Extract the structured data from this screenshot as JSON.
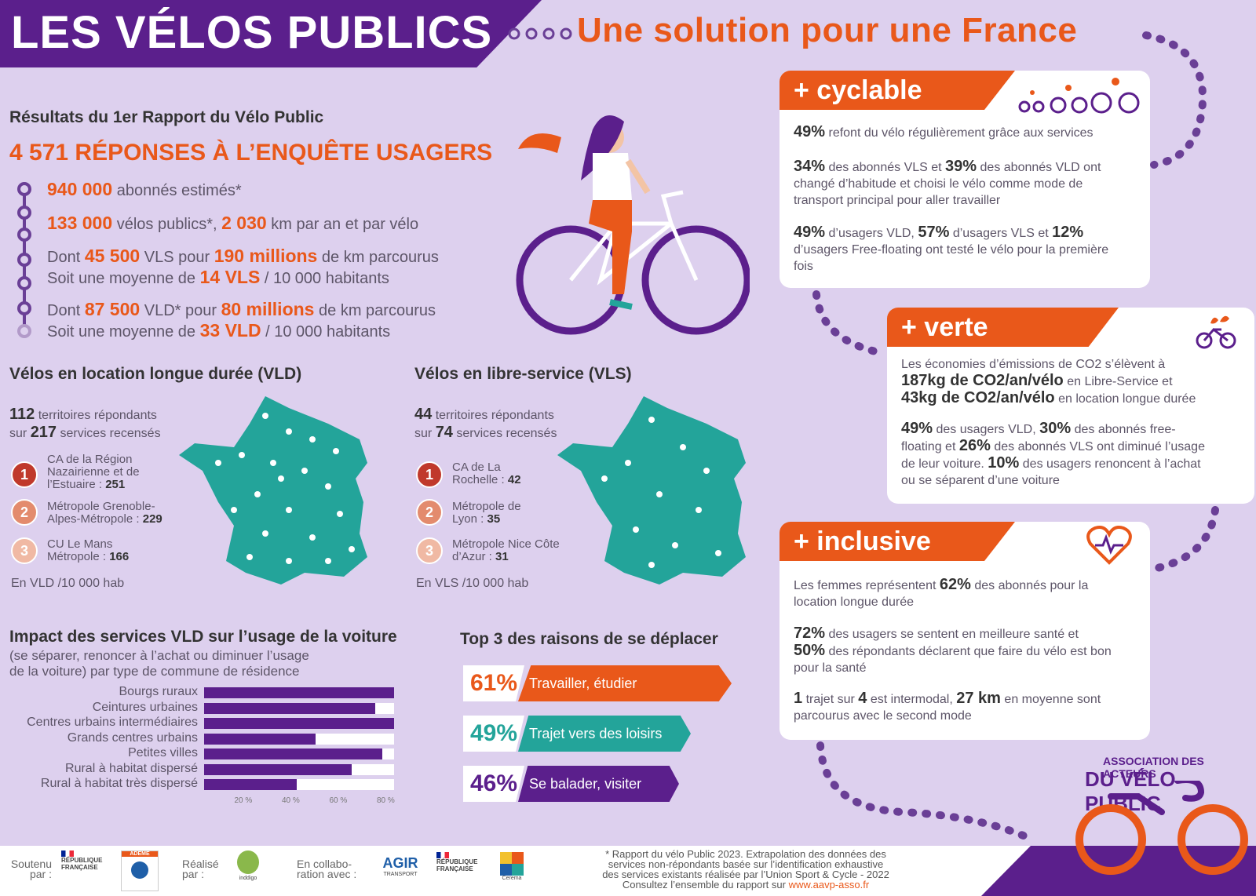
{
  "header": {
    "title": "LES VÉLOS PUBLICS",
    "subtitle": "Une solution pour une France"
  },
  "survey": {
    "report_title": "Résultats du 1er Rapport du Vélo Public",
    "heading": "4 571 RÉPONSES À L’ENQUÊTE USAGERS",
    "subscribers_num": "940 000",
    "subscribers_text": "abonnés estimés*",
    "bikes_num": "133 000",
    "bikes_text": "vélos publics*,",
    "km_num": "2 030",
    "km_text": "km par an et par vélo",
    "vls_pre": "Dont",
    "vls_num": "45 500",
    "vls_mid": "VLS pour",
    "vls_km": "190 millions",
    "vls_post": "de km parcourus",
    "vls_avg_pre": "Soit une moyenne de",
    "vls_avg": "14 VLS",
    "vls_avg_post": "/ 10 000 habitants",
    "vld_pre": "Dont",
    "vld_num": "87 500",
    "vld_mid": "VLD* pour",
    "vld_km": "80 millions",
    "vld_post": "de km parcourus",
    "vld_avg_pre": "Soit une moyenne de",
    "vld_avg": "33 VLD",
    "vld_avg_post": "/ 10 000 habitants"
  },
  "vld_section": {
    "heading": "Vélos en location longue durée (VLD)",
    "territories_num": "112",
    "territories_text": "territoires répondants",
    "services_pre": "sur",
    "services_num": "217",
    "services_text": "services recensés",
    "ranks": [
      {
        "rank": "1",
        "name": "CA de la Région Nazairienne et de l’Estuaire :",
        "value": "251"
      },
      {
        "rank": "2",
        "name": "Métropole Grenoble-Alpes-Métropole :",
        "value": "229"
      },
      {
        "rank": "3",
        "name": "CU Le Mans Métropole :",
        "value": "166"
      }
    ],
    "per_hab": "En VLD /10 000 hab"
  },
  "vls_section": {
    "heading": "Vélos en libre-service (VLS)",
    "territories_num": "44",
    "territories_text": "territoires répondants",
    "services_pre": "sur",
    "services_num": "74",
    "services_text": "services recensés",
    "ranks": [
      {
        "rank": "1",
        "name": "CA de La Rochelle :",
        "value": "42"
      },
      {
        "rank": "2",
        "name": "Métropole de Lyon :",
        "value": "35"
      },
      {
        "rank": "3",
        "name": "Métropole Nice Côte d’Azur :",
        "value": "31"
      }
    ],
    "per_hab": "En VLS /10 000 hab"
  },
  "chart_data": {
    "type": "bar",
    "title": "Impact des services VLD sur l’usage de la voiture",
    "subtitle_lines": [
      "(se séparer, renoncer à l’achat ou diminuer l’usage",
      "de la voiture) par type de commune de résidence"
    ],
    "categories": [
      "Bourgs ruraux",
      "Ceintures urbaines",
      "Centres urbains intermédiaires",
      "Grands centres urbains",
      "Petites villes",
      "Rural à habitat dispersé",
      "Rural à habitat très dispersé"
    ],
    "values": [
      80,
      72,
      80,
      47,
      75,
      62,
      39
    ],
    "xlim": [
      0,
      80
    ],
    "tick_labels": [
      "20 %",
      "40 %",
      "60 %",
      "80 %"
    ],
    "bar_color": "#5b1f8c"
  },
  "reasons": {
    "title": "Top 3 des raisons de se déplacer",
    "items": [
      {
        "pct": "61%",
        "label": "Travailler, étudier",
        "color": "#e9581a"
      },
      {
        "pct": "49%",
        "label": "Trajet vers des loisirs",
        "color": "#23a49a"
      },
      {
        "pct": "46%",
        "label": "Se balader, visiter",
        "color": "#5b1f8c"
      }
    ]
  },
  "cyclable": {
    "tab": "+ cyclable",
    "p1_num": "49%",
    "p1_text": "refont du vélo régulièrement grâce aux services",
    "p2_num_a": "34%",
    "p2_text_a": "des abonnés VLS et",
    "p2_num_b": "39%",
    "p2_text_b": "des abonnés VLD ont",
    "p2_line2": "changé d’habitude et choisi le vélo comme mode de",
    "p2_line3": "transport principal pour aller travailler",
    "p3_num_a": "49%",
    "p3_text_a": "d’usagers VLD,",
    "p3_num_b": "57%",
    "p3_text_b": "d’usagers VLS et",
    "p3_num_c": "12%",
    "p3_line2": "d’usagers Free-floating ont testé le vélo pour la première",
    "p3_line3": "fois"
  },
  "verte": {
    "tab": "+ verte",
    "p1_line1": "Les économies d’émissions de CO2 s’élèvent à",
    "p1_num_a": "187kg de CO2/an/vélo",
    "p1_text_a": "en Libre-Service et",
    "p1_num_b": "43kg de CO2/an/vélo",
    "p1_text_b": "en location longue durée",
    "p2_num_a": "49%",
    "p2_text_a": "des usagers VLD,",
    "p2_num_b": "30%",
    "p2_text_b": "des abonnés free-",
    "p2_line2_pre": "floating et",
    "p2_num_c": "26%",
    "p2_line2_post": "des abonnés VLS ont diminué l’usage",
    "p2_line3_pre": "de leur voiture.",
    "p2_num_d": "10%",
    "p2_line3_post": "des usagers renoncent à l’achat",
    "p2_line4": "ou se séparent d’une voiture"
  },
  "inclusive": {
    "tab": "+ inclusive",
    "p1_pre": "Les femmes représentent",
    "p1_num": "62%",
    "p1_post": "des abonnés pour la",
    "p1_line2": "location longue durée",
    "p2_num_a": "72%",
    "p2_text_a": "des usagers se sentent en meilleure santé et",
    "p2_num_b": "50%",
    "p2_text_b": "des répondants déclarent que faire du vélo est bon",
    "p2_line3": "pour la santé",
    "p3_num_a": "1",
    "p3_text_a": "trajet sur",
    "p3_num_b": "4",
    "p3_text_b": "est intermodal,",
    "p3_num_c": "27 km",
    "p3_text_c": "en moyenne sont",
    "p3_line2": "parcourus avec le second mode"
  },
  "association": {
    "line1": "ASSOCIATION DES ACTEURS",
    "line2": "DU VÉLO PUBLIC"
  },
  "footer": {
    "soutenu": [
      "Soutenu",
      "par :"
    ],
    "realise": [
      "Réalisé",
      "par :"
    ],
    "collab": [
      "En collabo-",
      "ration avec :"
    ],
    "logo_rf": [
      "RÉPUBLIQUE",
      "FRANÇAISE"
    ],
    "logo_ademe": "ADEME",
    "logo_inddigo": "inddigo",
    "logo_agir": "AGIR",
    "logo_agir_sub": "TRANSPORT",
    "logo_cerema": "Cerema",
    "footnote_lines": [
      "* Rapport du vélo Public 2023. Extrapolation des données des",
      "services non-répondants basée sur l’identification exhaustive",
      "des services existants réalisée par l’Union Sport & Cycle - 2022"
    ],
    "footnote_last_pre": "Consultez l’ensemble du rapport sur",
    "footnote_site": "www.aavp-asso.fr"
  },
  "colors": {
    "violet": "#5b1f8c",
    "orange": "#e9581a",
    "teal": "#23a49a",
    "background": "#ddd0ee"
  }
}
